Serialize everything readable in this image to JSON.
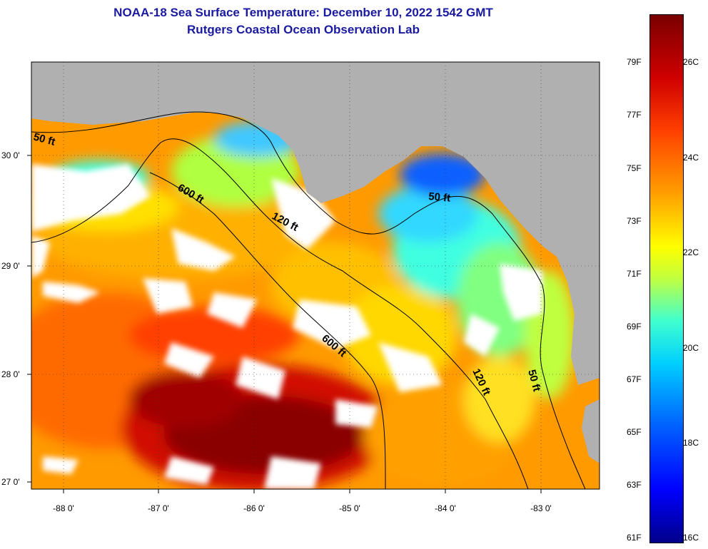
{
  "header": {
    "title_line1": "NOAA-18 Sea Surface Temperature:  December 10, 2022 1542 GMT",
    "title_line2": "Rutgers Coastal Ocean Observation Lab"
  },
  "map": {
    "lat_labels": [
      "30 0'",
      "29 0'",
      "28 0'",
      "27 0'"
    ],
    "lon_labels": [
      "-88 0'",
      "-87 0'",
      "-86 0'",
      "-85 0'",
      "-84 0'",
      "-83 0'"
    ],
    "contour_labels": [
      "50 ft",
      "600 ft",
      "120 ft",
      "50 ft",
      "600 ft",
      "120 ft",
      "50 ft"
    ],
    "colors": {
      "land": "#b0b0b0",
      "cloud": "#ffffff",
      "contour": "#000000"
    }
  },
  "colorbar": {
    "fahrenheit_labels": [
      "79F",
      "77F",
      "75F",
      "73F",
      "71F",
      "69F",
      "67F",
      "65F",
      "63F",
      "61F"
    ],
    "celsius_labels": [
      "26C",
      "24C",
      "22C",
      "20C",
      "18C",
      "16C"
    ]
  }
}
